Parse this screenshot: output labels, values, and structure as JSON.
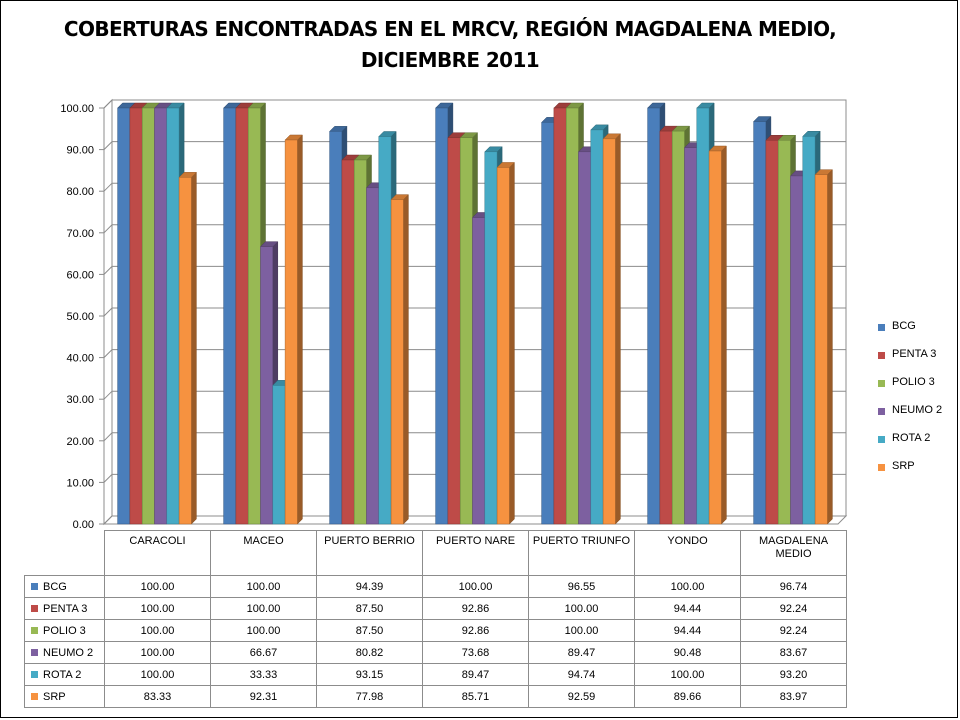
{
  "title": "COBERTURAS ENCONTRADAS EN EL MRCV, REGIÓN MAGDALENA MEDIO,\nDICIEMBRE 2011",
  "chart_data": {
    "type": "bar",
    "title": "COBERTURAS ENCONTRADAS EN EL MRCV, REGIÓN MAGDALENA MEDIO,\nDICIEMBRE 2011",
    "categories": [
      "CARACOLI",
      "MACEO",
      "PUERTO BERRIO",
      "PUERTO NARE",
      "PUERTO TRIUNFO",
      "YONDO",
      "MAGDALENA MEDIO"
    ],
    "series": [
      {
        "name": "BCG",
        "color": "#4a7ebb",
        "values": [
          100.0,
          100.0,
          94.39,
          100.0,
          96.55,
          100.0,
          96.74
        ],
        "labels": [
          "100.00",
          "100.00",
          "94.39",
          "100.00",
          "96.55",
          "100.00",
          "96.74"
        ]
      },
      {
        "name": "PENTA 3",
        "color": "#be4b48",
        "values": [
          100.0,
          100.0,
          87.5,
          92.86,
          100.0,
          94.44,
          92.24
        ],
        "labels": [
          "100.00",
          "100.00",
          "87.50",
          "92.86",
          "100.00",
          "94.44",
          "92.24"
        ]
      },
      {
        "name": "POLIO 3",
        "color": "#98b954",
        "values": [
          100.0,
          100.0,
          87.5,
          92.86,
          100.0,
          94.44,
          92.24
        ],
        "labels": [
          "100.00",
          "100.00",
          "87.50",
          "92.86",
          "100.00",
          "94.44",
          "92.24"
        ]
      },
      {
        "name": "NEUMO 2",
        "color": "#7d60a0",
        "values": [
          100.0,
          66.67,
          80.82,
          73.68,
          89.47,
          90.48,
          83.67
        ],
        "labels": [
          "100.00",
          "66.67",
          "80.82",
          "73.68",
          "89.47",
          "90.48",
          "83.67"
        ]
      },
      {
        "name": "ROTA 2",
        "color": "#46aac5",
        "values": [
          100.0,
          33.33,
          93.15,
          89.47,
          94.74,
          100.0,
          93.2
        ],
        "labels": [
          "100.00",
          "33.33",
          "93.15",
          "89.47",
          "94.74",
          "100.00",
          "93.20"
        ]
      },
      {
        "name": "SRP",
        "color": "#f69240",
        "values": [
          83.33,
          92.31,
          77.98,
          85.71,
          92.59,
          89.66,
          83.97
        ],
        "labels": [
          "83.33",
          "92.31",
          "77.98",
          "85.71",
          "92.59",
          "89.66",
          "83.97"
        ]
      }
    ],
    "ylim": [
      0,
      100
    ],
    "yticks": [
      "0.00",
      "10.00",
      "20.00",
      "30.00",
      "40.00",
      "50.00",
      "60.00",
      "70.00",
      "80.00",
      "90.00",
      "100.00"
    ],
    "grid": true,
    "legend": "right",
    "xlabel": "",
    "ylabel": ""
  }
}
